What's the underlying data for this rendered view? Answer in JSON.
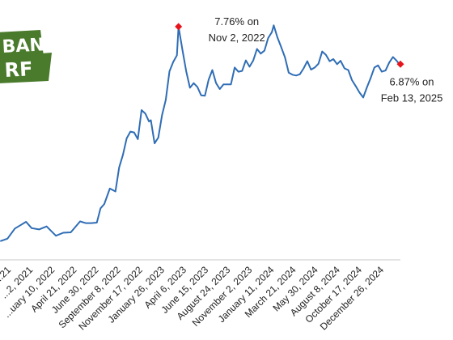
{
  "logo": {
    "line1": "BAN",
    "line2": "RF",
    "color": "#4a7a2c"
  },
  "chart_data": {
    "type": "line",
    "series": [
      {
        "color": "#2f6db5",
        "points": [
          [
            "2021-01-01",
            2.67
          ],
          [
            "2021-01-28",
            2.73
          ],
          [
            "2021-02-25",
            2.97
          ],
          [
            "2021-03-18",
            3.05
          ],
          [
            "2021-04-08",
            3.13
          ],
          [
            "2021-04-29",
            2.98
          ],
          [
            "2021-05-27",
            2.95
          ],
          [
            "2021-06-24",
            3.02
          ],
          [
            "2021-07-29",
            2.8
          ],
          [
            "2021-08-26",
            2.87
          ],
          [
            "2021-09-23",
            2.88
          ],
          [
            "2021-10-28",
            3.14
          ],
          [
            "2021-11-18",
            3.1
          ],
          [
            "2021-12-09",
            3.1
          ],
          [
            "2021-12-30",
            3.11
          ],
          [
            "2022-01-13",
            3.45
          ],
          [
            "2022-01-27",
            3.55
          ],
          [
            "2022-02-17",
            3.92
          ],
          [
            "2022-03-10",
            3.85
          ],
          [
            "2022-03-24",
            4.42
          ],
          [
            "2022-04-07",
            4.72
          ],
          [
            "2022-04-21",
            5.11
          ],
          [
            "2022-05-05",
            5.27
          ],
          [
            "2022-05-19",
            5.25
          ],
          [
            "2022-06-02",
            5.09
          ],
          [
            "2022-06-16",
            5.78
          ],
          [
            "2022-06-30",
            5.7
          ],
          [
            "2022-07-14",
            5.51
          ],
          [
            "2022-07-21",
            5.54
          ],
          [
            "2022-08-04",
            4.99
          ],
          [
            "2022-08-18",
            5.13
          ],
          [
            "2022-09-01",
            5.66
          ],
          [
            "2022-09-15",
            6.02
          ],
          [
            "2022-09-29",
            6.7
          ],
          [
            "2022-10-13",
            6.92
          ],
          [
            "2022-10-27",
            7.08
          ],
          [
            "2022-11-02",
            7.76
          ],
          [
            "2022-11-17",
            7.2
          ],
          [
            "2022-12-01",
            6.7
          ],
          [
            "2022-12-15",
            6.31
          ],
          [
            "2022-12-29",
            6.42
          ],
          [
            "2023-01-12",
            6.33
          ],
          [
            "2023-01-26",
            6.13
          ],
          [
            "2023-02-09",
            6.12
          ],
          [
            "2023-02-23",
            6.5
          ],
          [
            "2023-03-09",
            6.73
          ],
          [
            "2023-03-23",
            6.42
          ],
          [
            "2023-04-06",
            6.28
          ],
          [
            "2023-04-20",
            6.39
          ],
          [
            "2023-05-04",
            6.39
          ],
          [
            "2023-05-18",
            6.39
          ],
          [
            "2023-06-01",
            6.79
          ],
          [
            "2023-06-15",
            6.69
          ],
          [
            "2023-06-29",
            6.71
          ],
          [
            "2023-07-13",
            6.96
          ],
          [
            "2023-07-27",
            6.81
          ],
          [
            "2023-08-10",
            6.96
          ],
          [
            "2023-08-24",
            7.23
          ],
          [
            "2023-09-07",
            7.12
          ],
          [
            "2023-09-21",
            7.19
          ],
          [
            "2023-10-05",
            7.49
          ],
          [
            "2023-10-19",
            7.63
          ],
          [
            "2023-10-26",
            7.79
          ],
          [
            "2023-11-09",
            7.5
          ],
          [
            "2023-11-22",
            7.29
          ],
          [
            "2023-12-07",
            7.03
          ],
          [
            "2023-12-21",
            6.67
          ],
          [
            "2024-01-04",
            6.62
          ],
          [
            "2024-01-18",
            6.6
          ],
          [
            "2024-02-01",
            6.63
          ],
          [
            "2024-02-15",
            6.77
          ],
          [
            "2024-02-29",
            6.94
          ],
          [
            "2024-03-14",
            6.74
          ],
          [
            "2024-03-28",
            6.79
          ],
          [
            "2024-04-11",
            6.88
          ],
          [
            "2024-04-25",
            7.17
          ],
          [
            "2024-05-09",
            7.09
          ],
          [
            "2024-05-23",
            6.94
          ],
          [
            "2024-06-06",
            6.99
          ],
          [
            "2024-06-20",
            6.87
          ],
          [
            "2024-07-03",
            6.95
          ],
          [
            "2024-07-18",
            6.77
          ],
          [
            "2024-08-01",
            6.73
          ],
          [
            "2024-08-15",
            6.49
          ],
          [
            "2024-08-29",
            6.35
          ],
          [
            "2024-09-12",
            6.2
          ],
          [
            "2024-09-26",
            6.08
          ],
          [
            "2024-10-10",
            6.32
          ],
          [
            "2024-10-24",
            6.54
          ],
          [
            "2024-11-07",
            6.79
          ],
          [
            "2024-11-21",
            6.84
          ],
          [
            "2024-12-05",
            6.69
          ],
          [
            "2024-12-19",
            6.72
          ],
          [
            "2025-01-02",
            6.91
          ],
          [
            "2025-01-16",
            7.04
          ],
          [
            "2025-01-30",
            6.95
          ],
          [
            "2025-02-06",
            6.89
          ],
          [
            "2025-02-13",
            6.87
          ]
        ]
      }
    ],
    "x_ticks": [
      "...21",
      "...2, 2021",
      "...uary 10, 2022",
      "April 21, 2022",
      "June 30, 2022",
      "September 8, 2022",
      "November 17, 2022",
      "January 26, 2023",
      "April 6, 2023",
      "June 15, 2023",
      "August 24, 2023",
      "November 2, 2023",
      "January 11, 2024",
      "March 21, 2024",
      "May 30, 2024",
      "August 8, 2024",
      "October 17, 2024",
      "December 26, 2024"
    ],
    "annotations": [
      {
        "date": "2022-11-02",
        "value": 7.76,
        "line1": "7.76% on",
        "line2": "Nov 2, 2022",
        "color": "#e8141c"
      },
      {
        "date": "2025-02-13",
        "value": 6.87,
        "line1": "6.87% on",
        "line2": "Feb 13, 2025",
        "color": "#e8141c"
      }
    ],
    "xlim": [
      "2020-12-31",
      "2025-02-13"
    ],
    "ylim": [
      2.4,
      8.2
    ],
    "grid": false,
    "legend": "none"
  }
}
